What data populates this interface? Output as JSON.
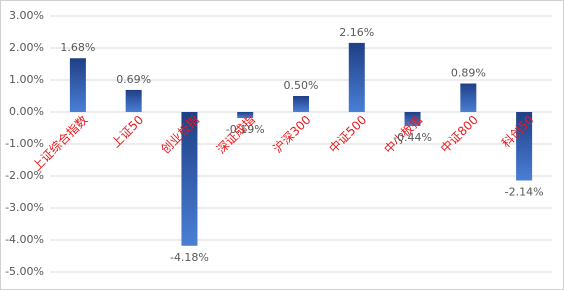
{
  "chart_data": {
    "type": "bar",
    "categories": [
      "上证综合指数",
      "上证50",
      "创业板指",
      "深证成指",
      "沪深300",
      "中证500",
      "中小板指",
      "中证800",
      "科创50"
    ],
    "values": [
      1.68,
      0.69,
      -4.18,
      -0.19,
      0.5,
      2.16,
      -0.44,
      0.89,
      -2.14
    ],
    "value_labels": [
      "1.68%",
      "0.69%",
      "-4.18%",
      "-0.19%",
      "0.50%",
      "2.16%",
      "-0.44%",
      "0.89%",
      "-2.14%"
    ],
    "color": "#2f5fb3",
    "ylim": [
      -5,
      3
    ],
    "yticks": [
      {
        "value": -5,
        "label": "-5.00%"
      },
      {
        "value": -4,
        "label": "-4.00%"
      },
      {
        "value": -3,
        "label": "-3.00%"
      },
      {
        "value": -2,
        "label": "-2.00%"
      },
      {
        "value": -1,
        "label": "-1.00%"
      },
      {
        "value": 0,
        "label": "0.00%"
      },
      {
        "value": 1,
        "label": "1.00%"
      },
      {
        "value": 2,
        "label": "2.00%"
      },
      {
        "value": 3,
        "label": "3.00%"
      }
    ],
    "grid": true
  }
}
